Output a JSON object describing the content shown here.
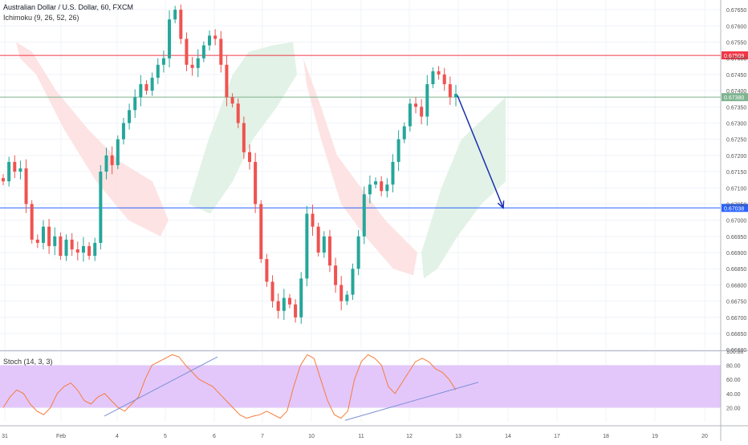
{
  "header": {
    "instrument_title": "Australian Dollar / U.S. Dollar, 60, FXCM",
    "ichimoku_label": "Ichimoku (9, 26, 52, 26)",
    "stoch_label": "Stoch (14, 3, 3)"
  },
  "colors": {
    "candle_up": "#26a69a",
    "candle_down": "#ef5350",
    "resistance_line": "#f23645",
    "support_line": "#2962ff",
    "current_price_line": "#7cb48f",
    "cloud_bull": "#dff1e4",
    "cloud_bear": "#fde0e0",
    "stoch_k": "#f57c3a",
    "stoch_band": "#e3c7fb",
    "trendline": "#7c8fd6",
    "projection_arrow": "#1a2fb0",
    "grid": "#f0f3fa",
    "axis_text": "#555555"
  },
  "chart_data": [
    {
      "type": "candlestick",
      "title": "Australian Dollar / U.S. Dollar, 60, FXCM",
      "x_ticks": [
        "31",
        "Feb",
        "4",
        "5",
        "6",
        "7",
        "10",
        "11",
        "12",
        "13",
        "14",
        "17",
        "18",
        "19",
        "20"
      ],
      "y_ticks": [
        "0.67650",
        "0.67600",
        "0.67550",
        "0.67500",
        "0.67450",
        "0.67400",
        "0.67350",
        "0.67300",
        "0.67250",
        "0.67200",
        "0.67150",
        "0.67100",
        "0.67050",
        "0.67000",
        "0.66950",
        "0.66900",
        "0.66850",
        "0.66800",
        "0.66750",
        "0.66700",
        "0.66650",
        "0.66600"
      ],
      "ylim": [
        0.66598,
        0.6768
      ],
      "grid": true,
      "approx_closes": [
        0.6712,
        0.6718,
        0.6715,
        0.6716,
        0.6705,
        0.6694,
        0.6693,
        0.6698,
        0.6692,
        0.6695,
        0.6689,
        0.6694,
        0.6691,
        0.669,
        0.6692,
        0.6689,
        0.6693,
        0.6715,
        0.672,
        0.6717,
        0.6725,
        0.673,
        0.6734,
        0.6738,
        0.6742,
        0.674,
        0.6744,
        0.6748,
        0.675,
        0.6762,
        0.6765,
        0.6756,
        0.6748,
        0.6747,
        0.675,
        0.6754,
        0.6757,
        0.6756,
        0.6748,
        0.6738,
        0.6736,
        0.673,
        0.6721,
        0.6718,
        0.6705,
        0.6688,
        0.6681,
        0.6675,
        0.6672,
        0.6676,
        0.6674,
        0.667,
        0.6682,
        0.6702,
        0.6698,
        0.669,
        0.6695,
        0.6686,
        0.668,
        0.6675,
        0.6677,
        0.6685,
        0.6695,
        0.6708,
        0.6711,
        0.6712,
        0.6709,
        0.6711,
        0.6718,
        0.6725,
        0.6729,
        0.6736,
        0.6735,
        0.6732,
        0.6742,
        0.6746,
        0.6745,
        0.6742,
        0.6738,
        0.6739
      ],
      "horizontal_levels": [
        {
          "price": 0.67509,
          "label": "0.67509"
        },
        {
          "price": 0.6738,
          "label": "0.67380"
        },
        {
          "price": 0.67038,
          "label": "0.67038"
        }
      ],
      "projection_arrow": {
        "from_x": "12",
        "from_price": 0.67385,
        "to_x": "14",
        "to_price": 0.67038
      }
    },
    {
      "type": "line",
      "title": "Stoch (14, 3, 3)",
      "y_ticks": [
        "100.00",
        "80.00",
        "60.00",
        "40.00",
        "20.00"
      ],
      "ylim": [
        0,
        100
      ],
      "band": [
        20,
        80
      ],
      "series": [
        {
          "values": [
            20,
            35,
            45,
            40,
            25,
            15,
            10,
            20,
            40,
            50,
            55,
            45,
            30,
            25,
            35,
            40,
            30,
            20,
            15,
            25,
            35,
            60,
            80,
            85,
            90,
            95,
            92,
            80,
            70,
            60,
            55,
            50,
            40,
            30,
            20,
            10,
            5,
            8,
            10,
            15,
            10,
            5,
            15,
            50,
            80,
            95,
            90,
            60,
            30,
            10,
            5,
            15,
            60,
            85,
            95,
            90,
            80,
            50,
            40,
            55,
            70,
            85,
            90,
            85,
            75,
            70,
            60,
            45
          ]
        }
      ]
    }
  ]
}
